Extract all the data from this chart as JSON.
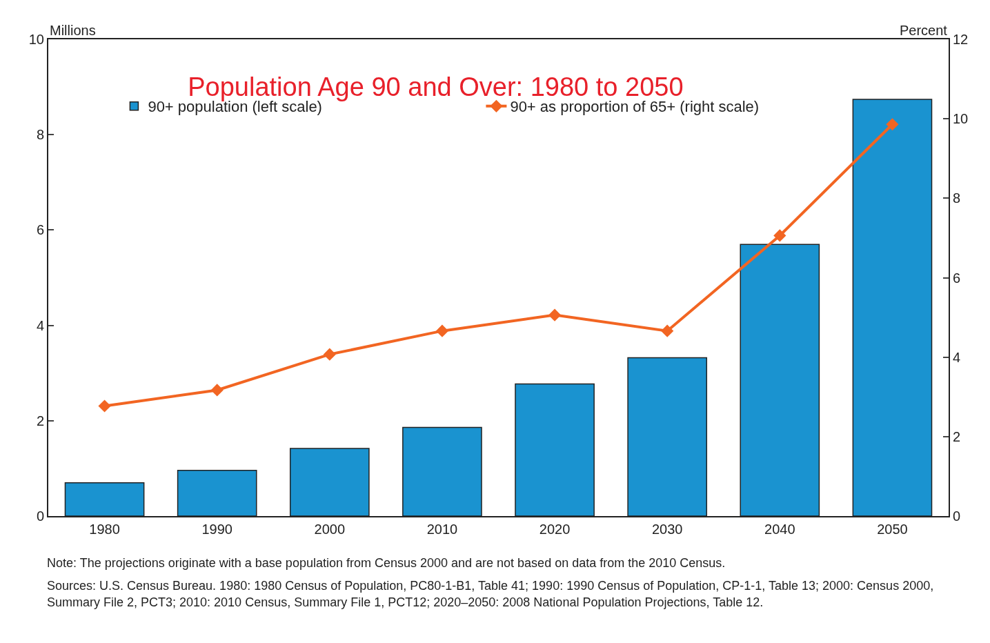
{
  "chart_data": {
    "type": "bar",
    "title": "Population Age 90 and Over: 1980 to 2050",
    "ylabel": "Millions",
    "y2label": "Percent",
    "categories": [
      "1980",
      "1990",
      "2000",
      "2010",
      "2020",
      "2030",
      "2040",
      "2050"
    ],
    "series": [
      {
        "name": "90+ population (left scale)",
        "color": "#1a93d0",
        "values": [
          0.7,
          0.96,
          1.42,
          1.86,
          2.77,
          3.32,
          5.7,
          8.74
        ]
      },
      {
        "name": "90+ as proportion of 65+ (right scale)",
        "type": "line",
        "axis": "y2",
        "color": "#f26522",
        "marker": "diamond",
        "values": [
          2.77,
          3.17,
          4.07,
          4.66,
          5.06,
          4.66,
          7.06,
          9.86
        ]
      }
    ],
    "ylim": [
      0,
      10
    ],
    "yticks": [
      0,
      2,
      4,
      6,
      8,
      10
    ],
    "y2lim": [
      0,
      12
    ],
    "y2ticks": [
      0,
      2,
      4,
      6,
      8,
      10,
      12
    ],
    "grid": false,
    "legend": "top left",
    "annotations": [
      "Note: The projections originate with a base population from Census 2000 and are not based on data from the 2010 Census.",
      "Sources: U.S. Census Bureau. 1980: 1980 Census of Population, PC80-1-B1, Table 41; 1990: 1990 Census of Population, CP-1-1, Table 13; 2000: Census 2000, Summary File 2, PCT3; 2010: 2010 Census, Summary File 1, PCT12; 2020–2050: 2008 National Population Projections, Table 12."
    ]
  }
}
